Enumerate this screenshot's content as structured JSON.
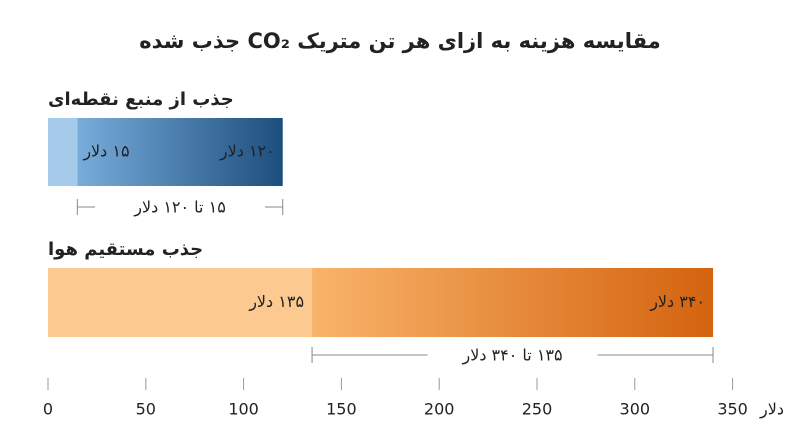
{
  "chart_data": {
    "type": "range_bar",
    "title": "مقایسه هزینه به ازای هر تن متریک CO₂ جذب شده",
    "categories": [
      "جذب از منبع نقطه‌ای",
      "جذب مستقیم هوا"
    ],
    "low": [
      15,
      135
    ],
    "high": [
      120,
      340
    ],
    "low_labels": [
      "۱۵ دلار",
      "۱۳۵ دلار"
    ],
    "high_labels": [
      "۱۲۰ دلار",
      "۳۴۰ دلار"
    ],
    "range_labels": [
      "۱۵ تا ۱۲۰ دلار",
      "۱۳۵ تا ۳۴۰ دلار"
    ],
    "colors": [
      [
        "#a6cbea",
        "#78acdb",
        "#1c4e7e"
      ],
      [
        "#fcc990",
        "#f9b46a",
        "#d4630f"
      ]
    ],
    "label_colors": [
      [
        "#ffffff",
        "#ffffff"
      ],
      [
        "#222222",
        "#ffffff"
      ]
    ],
    "xlabel": "دلار",
    "xlim": [
      0,
      350
    ],
    "xticks": [
      0,
      50,
      100,
      150,
      200,
      250,
      300,
      350
    ]
  }
}
